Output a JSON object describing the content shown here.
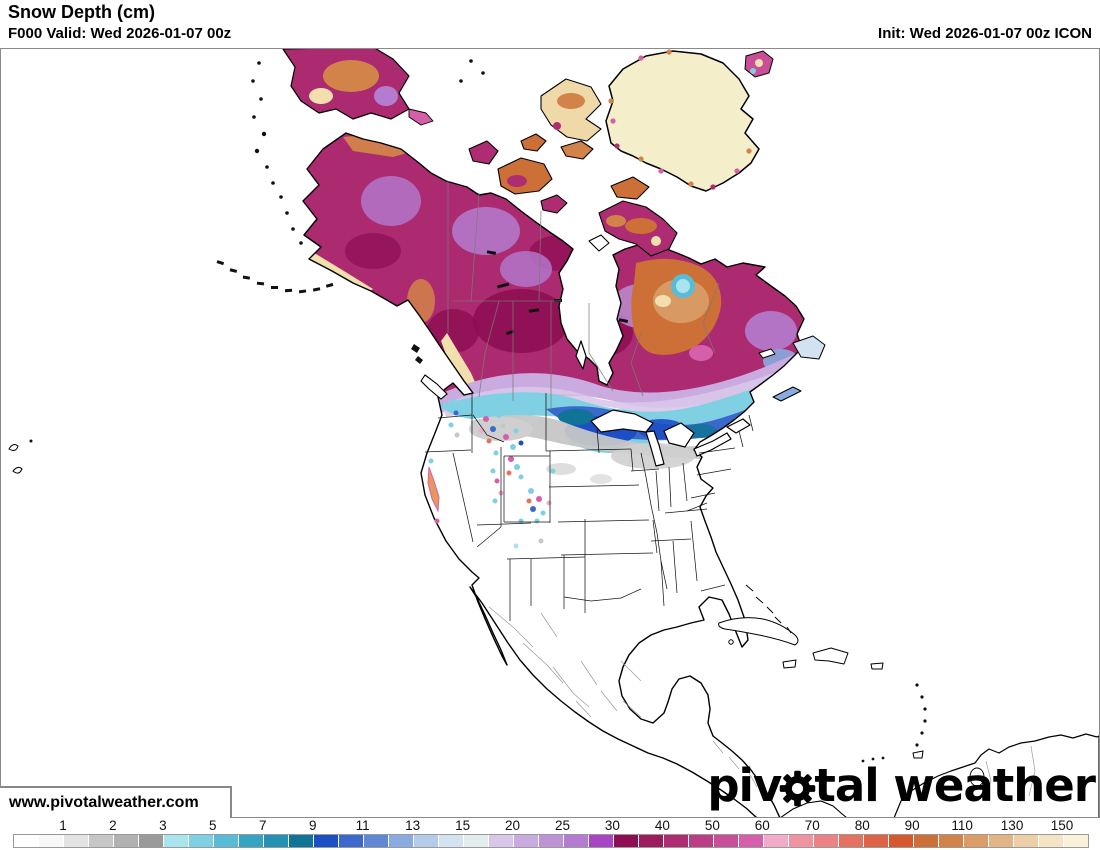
{
  "header": {
    "title": "Snow Depth (cm)",
    "valid_line": "F000 Valid: Wed 2026-01-07 00z",
    "init_line": "Init: Wed 2026-01-07 00z ICON"
  },
  "watermark": {
    "url_text": "www.pivotalweather.com"
  },
  "logo": {
    "part1": "piv",
    "part2": "tal weather",
    "icon": "gear-icon"
  },
  "chart_data": {
    "type": "heatmap",
    "title": "Snow Depth (cm)",
    "units": "cm",
    "model": "ICON",
    "forecast_hour": "F000",
    "valid_time": "Wed 2026-01-07 00z",
    "init_time": "Wed 2026-01-07 00z",
    "region": "North America",
    "legend": {
      "tick_labels": [
        "1",
        "2",
        "3",
        "5",
        "7",
        "9",
        "11",
        "13",
        "15",
        "20",
        "25",
        "30",
        "40",
        "50",
        "60",
        "70",
        "80",
        "90",
        "110",
        "130",
        "150"
      ],
      "cells_per_tick_interval": 2,
      "bin_edges": [
        0,
        0.5,
        1,
        1.5,
        2,
        2.5,
        3,
        4,
        5,
        6,
        7,
        8,
        9,
        10,
        11,
        12,
        13,
        14,
        15,
        17.5,
        20,
        22.5,
        25,
        27.5,
        30,
        35,
        40,
        45,
        50,
        55,
        60,
        65,
        70,
        75,
        80,
        85,
        90,
        100,
        110,
        120,
        130,
        140,
        150
      ],
      "open_ended_top": true,
      "bin_colors": [
        "#ffffff",
        "#f7f7f7",
        "#e3e3e3",
        "#c6c6c6",
        "#b1b1b1",
        "#9a9a9a",
        "#aae4ef",
        "#7fd0e2",
        "#58bcd6",
        "#35a3c2",
        "#2490b2",
        "#0f7495",
        "#1d4fc4",
        "#3a68cd",
        "#5e87d6",
        "#8aabe0",
        "#b3cce9",
        "#d3e2f1",
        "#e3eced",
        "#d9c7e9",
        "#c9abdf",
        "#bd93d6",
        "#b47ccf",
        "#a944c4",
        "#8d0e53",
        "#9c1b5e",
        "#ad2c72",
        "#bb3d85",
        "#c74e97",
        "#d560a9",
        "#f1abc9",
        "#ee939f",
        "#ea8286",
        "#e37260",
        "#de6245",
        "#d6582e",
        "#cd7037",
        "#d28349",
        "#da9d68",
        "#e3b585",
        "#edcfa7",
        "#f5e4c3",
        "#f9f2d8"
      ]
    }
  }
}
